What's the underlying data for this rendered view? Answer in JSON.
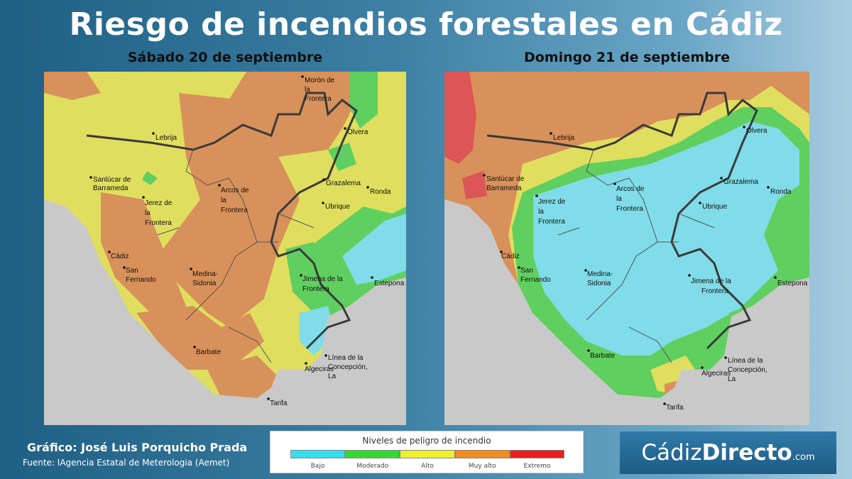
{
  "title": "Riesgo de incendios forestales en Cádiz",
  "maps": [
    {
      "date": "Sábado 20 de septiembre",
      "places": {
        "moron": [
          "Morón de",
          "la",
          "Frontera"
        ],
        "lebrija": [
          "Lebrija"
        ],
        "olvera": [
          "Olvera"
        ],
        "sanlucar": [
          "Sanlúcar de",
          "Barrameda"
        ],
        "grazalema": [
          "Grazalema"
        ],
        "ronda": [
          "Ronda"
        ],
        "arcos": [
          "Arcos de",
          "la",
          "Frontera"
        ],
        "jerez": [
          "Jerez de",
          "la",
          "Frontera"
        ],
        "ubrique": [
          "Ubrique"
        ],
        "cadiz": [
          "Cádiz"
        ],
        "sanfernando": [
          "San",
          "Fernando"
        ],
        "medina": [
          "Medina-",
          "Sidonia"
        ],
        "jimena": [
          "Jimena de la",
          "Frontera"
        ],
        "estepona": [
          "Estepona"
        ],
        "barbate": [
          "Barbate"
        ],
        "linea": [
          "Línea de la",
          "Concepción,",
          "La"
        ],
        "algeciras": [
          "Algeciras"
        ],
        "tarifa": [
          "Tarifa"
        ]
      }
    },
    {
      "date": "Domingo 21 de septiembre",
      "places": {
        "lebrija": [
          "Lebrija"
        ],
        "olvera": [
          "Olvera"
        ],
        "sanlucar": [
          "Sanlúcar de",
          "Barrameda"
        ],
        "grazalema": [
          "Grazalema"
        ],
        "ronda": [
          "Ronda"
        ],
        "arcos": [
          "Arcos de",
          "la",
          "Frontera"
        ],
        "jerez": [
          "Jerez de",
          "la",
          "Frontera"
        ],
        "ubrique": [
          "Ubrique"
        ],
        "cadiz": [
          "Cádiz"
        ],
        "sanfernando": [
          "San",
          "Fernando"
        ],
        "medina": [
          "Medina-",
          "Sidonia"
        ],
        "jimena": [
          "Jimena de la",
          "Frontera"
        ],
        "estepona": [
          "Estepona"
        ],
        "barbate": [
          "Barbate"
        ],
        "linea": [
          "Línea de la",
          "Concepción,",
          "La"
        ],
        "algeciras": [
          "Algeciras"
        ],
        "tarifa": [
          "Tarifa"
        ]
      }
    }
  ],
  "legend": {
    "title": "Niveles de peligro de incendio",
    "levels": [
      {
        "label": "Bajo",
        "color": "#33e0f0"
      },
      {
        "label": "Moderado",
        "color": "#33d933"
      },
      {
        "label": "Alto",
        "color": "#f0f02a"
      },
      {
        "label": "Muy alto",
        "color": "#f08c1e"
      },
      {
        "label": "Extremo",
        "color": "#ee1c1c"
      }
    ]
  },
  "credits": {
    "author": "Gráfico: José Luis Porquicho Prada",
    "source": "Fuente:  IAgencia Estatal de Meterologia (Aemet)"
  },
  "logo": {
    "part1": "Cádiz",
    "part2": "Directo",
    "part3": ".com"
  },
  "colors": {
    "sea": "#c9c9c9",
    "bajo": "#7fdce8",
    "moderado": "#5fcf5f",
    "alto": "#e0de5e",
    "muy_alto": "#d8915a",
    "extremo": "#dc5656"
  }
}
